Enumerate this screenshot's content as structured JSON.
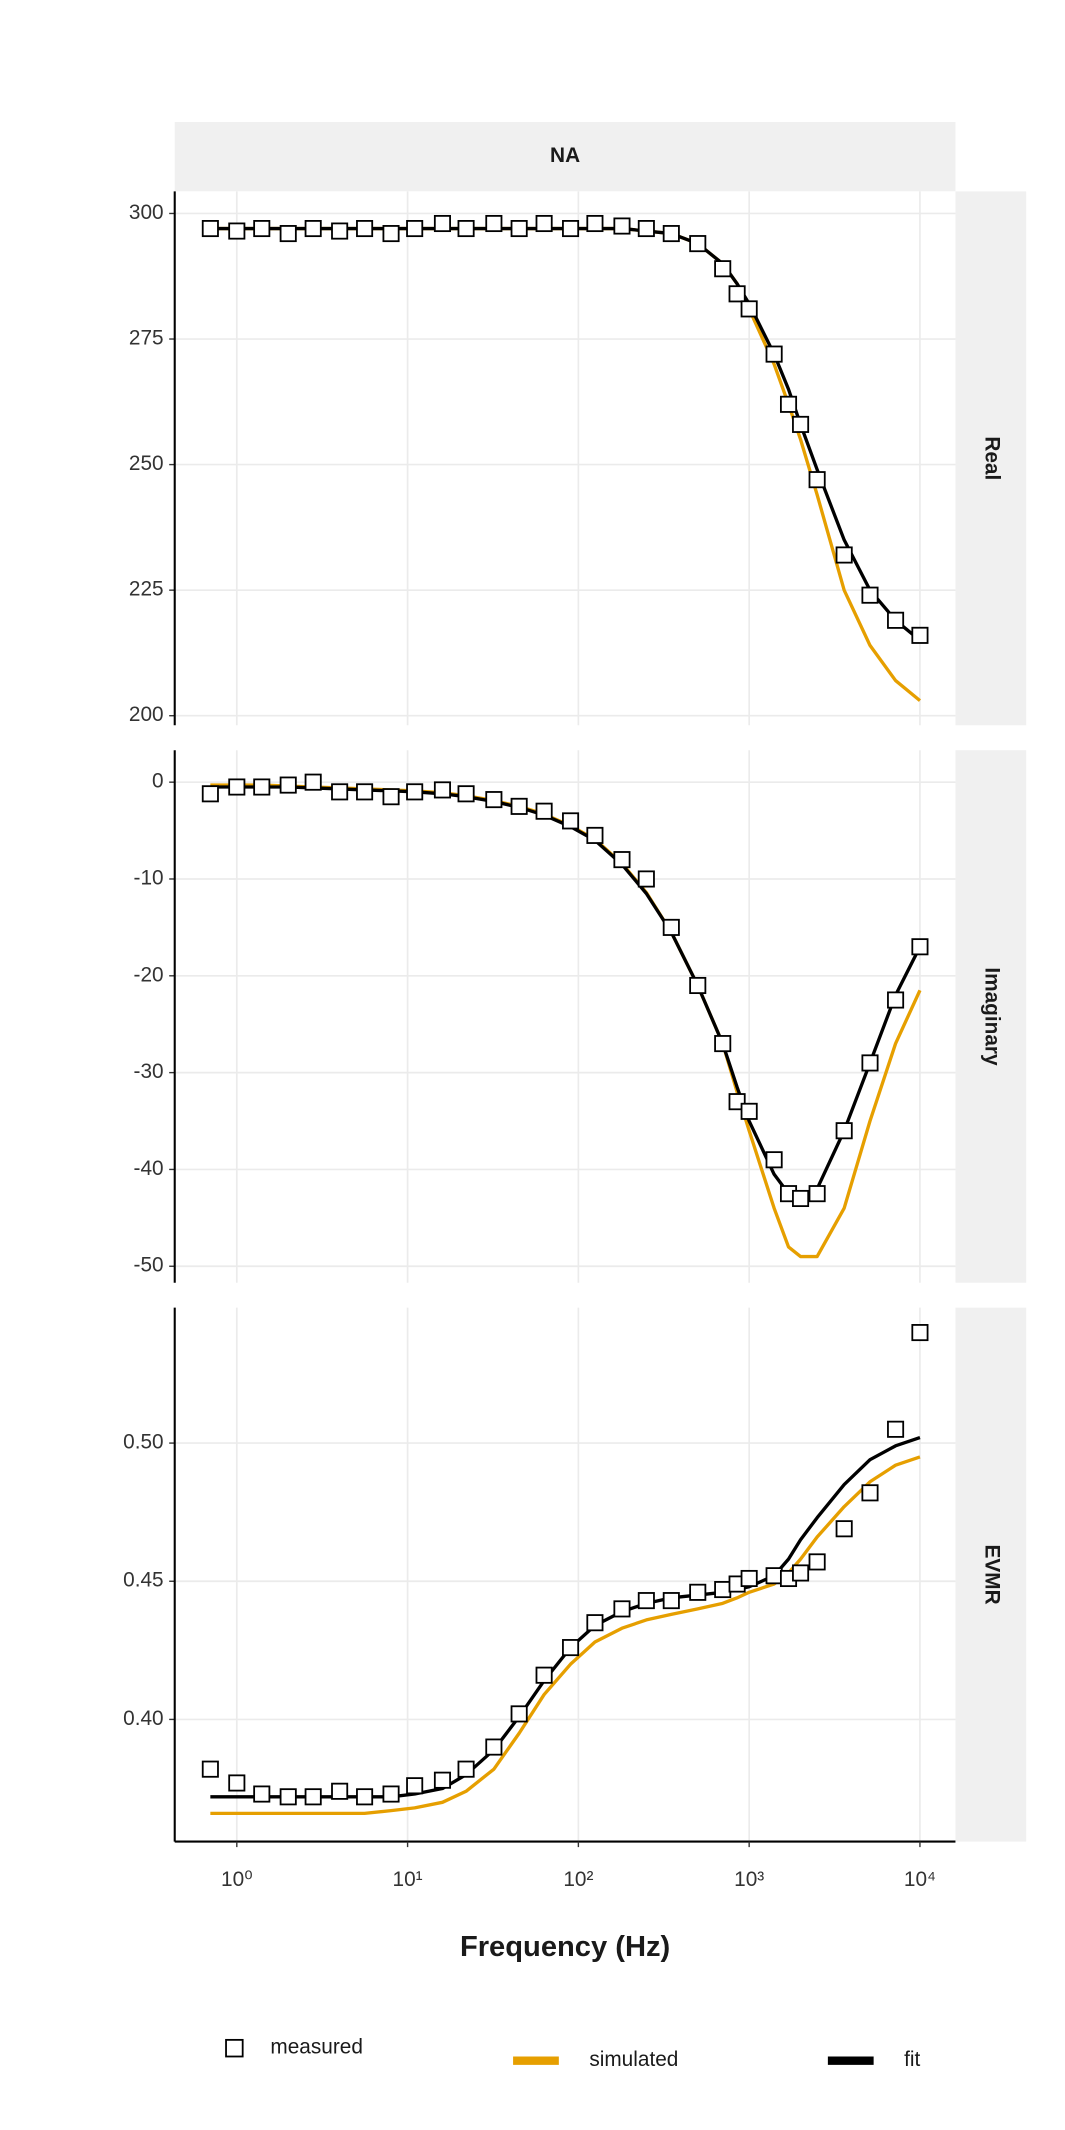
{
  "chart_data": {
    "type": "line",
    "strip_title": "NA",
    "xlabel": "Frequency (Hz)",
    "log_x": true,
    "grid": true,
    "xlim": [
      0.433,
      16140
    ],
    "xticks": [
      {
        "value": 1,
        "label": "10⁰"
      },
      {
        "value": 10,
        "label": "10¹"
      },
      {
        "value": 100,
        "label": "10²"
      },
      {
        "value": 1000,
        "label": "10³"
      },
      {
        "value": 10000,
        "label": "10⁴"
      }
    ],
    "x": [
      0.7,
      1,
      1.4,
      2,
      2.8,
      4,
      5.6,
      8,
      11,
      16,
      22,
      32,
      45,
      63,
      90,
      125,
      180,
      250,
      350,
      500,
      700,
      850,
      1000,
      1400,
      1700,
      2000,
      2500,
      3600,
      5100,
      7200,
      10000
    ],
    "facets": [
      {
        "label": "Real",
        "ylim": [
          198.1,
          304.4
        ],
        "yticks": [
          200,
          225,
          250,
          275,
          300
        ],
        "series": [
          {
            "name": "measured",
            "color": "#000000",
            "mode": "markers",
            "values": [
              297,
              296.5,
              297,
              296,
              297,
              296.5,
              297,
              296,
              297,
              298,
              297,
              298,
              297,
              298,
              297,
              298,
              297.5,
              297,
              296,
              294,
              289,
              284,
              281,
              272,
              262,
              258,
              247,
              232,
              224,
              219,
              216
            ]
          },
          {
            "name": "simulated",
            "color": "#E69F00",
            "mode": "lines",
            "values": [
              297,
              297,
              297,
              297,
              297,
              297,
              297,
              297,
              297,
              297,
              297,
              297,
              297,
              297,
              297,
              297,
              297,
              296.5,
              296,
              294,
              290,
              286,
              281,
              270,
              262,
              255,
              244,
              225,
              214,
              207,
              203
            ]
          },
          {
            "name": "fit",
            "color": "#000000",
            "mode": "lines",
            "values": [
              297,
              297,
              297,
              297,
              297,
              297,
              297,
              297,
              297,
              297,
              297,
              297,
              297,
              297,
              297,
              297,
              297,
              296.5,
              296,
              294,
              290,
              286,
              282,
              272,
              265,
              258,
              249,
              235,
              225,
              219,
              215
            ]
          }
        ]
      },
      {
        "label": "Imaginary",
        "ylim": [
          -51.7,
          3.3
        ],
        "yticks": [
          -50,
          -40,
          -30,
          -20,
          -10,
          0
        ],
        "series": [
          {
            "name": "measured",
            "color": "#000000",
            "mode": "markers",
            "values": [
              -1.2,
              -0.5,
              -0.5,
              -0.3,
              0,
              -1,
              -1,
              -1.5,
              -1,
              -0.8,
              -1.2,
              -1.8,
              -2.5,
              -3,
              -4,
              -5.5,
              -8,
              -10,
              -15,
              -21,
              -27,
              -33,
              -34,
              -39,
              -42.5,
              -43,
              -42.5,
              -36,
              -29,
              -22.5,
              -17
            ]
          },
          {
            "name": "simulated",
            "color": "#E69F00",
            "mode": "lines",
            "values": [
              -0.3,
              -0.3,
              -0.3,
              -0.4,
              -0.5,
              -0.6,
              -0.7,
              -0.8,
              -0.9,
              -1.1,
              -1.4,
              -1.9,
              -2.5,
              -3.3,
              -4.5,
              -5.9,
              -8.4,
              -11.4,
              -15.5,
              -21,
              -27,
              -32,
              -36,
              -44,
              -48,
              -49,
              -49,
              -44,
              -35,
              -27,
              -21.5
            ]
          },
          {
            "name": "fit",
            "color": "#000000",
            "mode": "lines",
            "values": [
              -0.5,
              -0.5,
              -0.5,
              -0.5,
              -0.6,
              -0.7,
              -0.8,
              -0.9,
              -1,
              -1.2,
              -1.5,
              -2,
              -2.6,
              -3.4,
              -4.6,
              -6,
              -8.5,
              -11.5,
              -15.5,
              -21,
              -27,
              -31.5,
              -35,
              -40.5,
              -42.5,
              -43,
              -42,
              -36,
              -29,
              -22,
              -17
            ]
          }
        ]
      },
      {
        "label": "EVMR",
        "ylim": [
          0.3558,
          0.549
        ],
        "yticks": [
          {
            "value": 0.4,
            "label": "0.40"
          },
          0.45,
          {
            "value": 0.5,
            "label": "0.50"
          }
        ],
        "series": [
          {
            "name": "measured",
            "color": "#000000",
            "mode": "markers",
            "values": [
              0.382,
              0.377,
              0.373,
              0.372,
              0.372,
              0.374,
              0.372,
              0.373,
              0.376,
              0.378,
              0.382,
              0.39,
              0.402,
              0.416,
              0.426,
              0.435,
              0.44,
              0.443,
              0.443,
              0.446,
              0.447,
              0.449,
              0.451,
              0.452,
              0.451,
              0.453,
              0.457,
              0.469,
              0.482,
              0.505,
              0.54
            ]
          },
          {
            "name": "simulated",
            "color": "#E69F00",
            "mode": "lines",
            "values": [
              0.366,
              0.366,
              0.366,
              0.366,
              0.366,
              0.366,
              0.366,
              0.367,
              0.368,
              0.37,
              0.374,
              0.382,
              0.395,
              0.409,
              0.42,
              0.428,
              0.433,
              0.436,
              0.438,
              0.44,
              0.442,
              0.444,
              0.446,
              0.449,
              0.453,
              0.458,
              0.466,
              0.477,
              0.486,
              0.492,
              0.495
            ]
          },
          {
            "name": "fit",
            "color": "#000000",
            "mode": "lines",
            "values": [
              0.372,
              0.372,
              0.372,
              0.372,
              0.372,
              0.372,
              0.372,
              0.372,
              0.373,
              0.375,
              0.38,
              0.389,
              0.401,
              0.414,
              0.426,
              0.434,
              0.439,
              0.442,
              0.444,
              0.445,
              0.446,
              0.447,
              0.448,
              0.452,
              0.458,
              0.465,
              0.473,
              0.485,
              0.494,
              0.499,
              0.502
            ]
          }
        ]
      }
    ]
  }
}
